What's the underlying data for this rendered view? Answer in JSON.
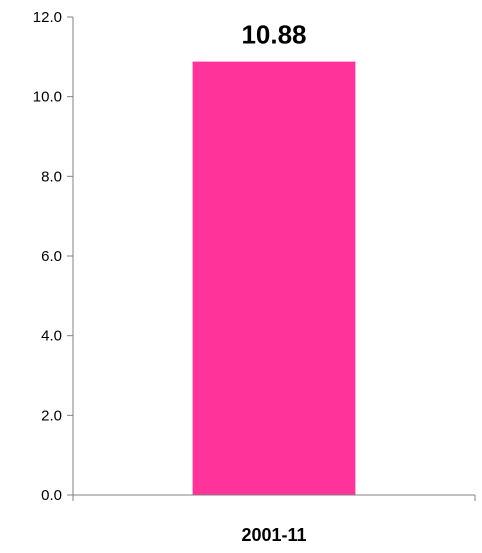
{
  "chart_data": {
    "type": "bar",
    "categories": [
      "2001-11"
    ],
    "values": [
      10.88
    ],
    "value_labels": [
      "10.88"
    ],
    "y_ticks": [
      "0.0",
      "2.0",
      "4.0",
      "6.0",
      "8.0",
      "10.0",
      "12.0"
    ],
    "ylim": [
      0,
      12
    ],
    "grid": false,
    "legend": "none",
    "bar_color": "#ff3399",
    "axis_color": "#808080"
  }
}
